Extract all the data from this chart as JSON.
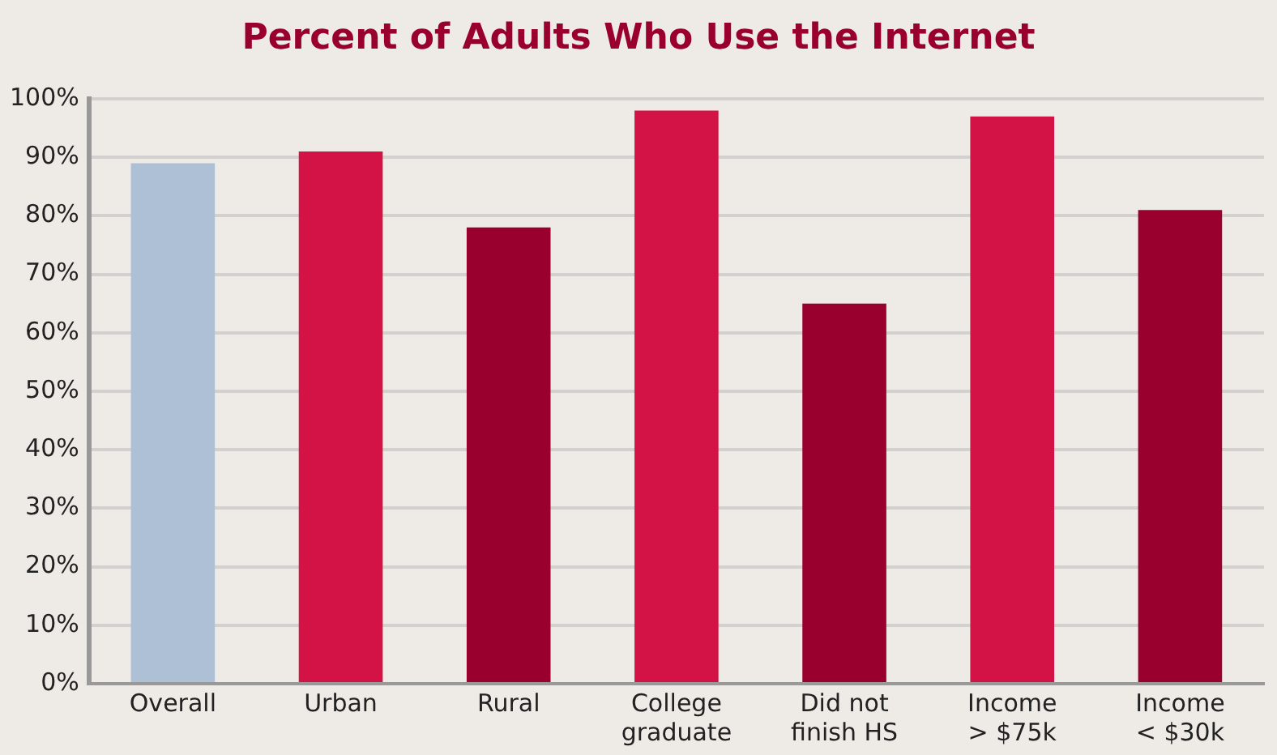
{
  "chart_data": {
    "type": "bar",
    "title": "Percent of Adults Who Use the Internet",
    "categories": [
      "Overall",
      "Urban",
      "Rural",
      "College\ngraduate",
      "Did not\nfinish HS",
      "Income\n> $75k",
      "Income\n< $30k"
    ],
    "values": [
      89,
      91,
      78,
      98,
      65,
      97,
      81
    ],
    "colors": [
      "#aec0d6",
      "#d31245",
      "#99002e",
      "#d31245",
      "#99002e",
      "#d31245",
      "#99002e"
    ],
    "ylim": [
      0,
      100
    ],
    "yticks": [
      {
        "value": 0,
        "label": "0%"
      },
      {
        "value": 10,
        "label": "10%"
      },
      {
        "value": 20,
        "label": "20%"
      },
      {
        "value": 30,
        "label": "30%"
      },
      {
        "value": 40,
        "label": "40%"
      },
      {
        "value": 50,
        "label": "50%"
      },
      {
        "value": 60,
        "label": "60%"
      },
      {
        "value": 70,
        "label": "70%"
      },
      {
        "value": 80,
        "label": "80%"
      },
      {
        "value": 90,
        "label": "90%"
      },
      {
        "value": 100,
        "label": "100%"
      }
    ],
    "grid": "y",
    "legend": false
  }
}
